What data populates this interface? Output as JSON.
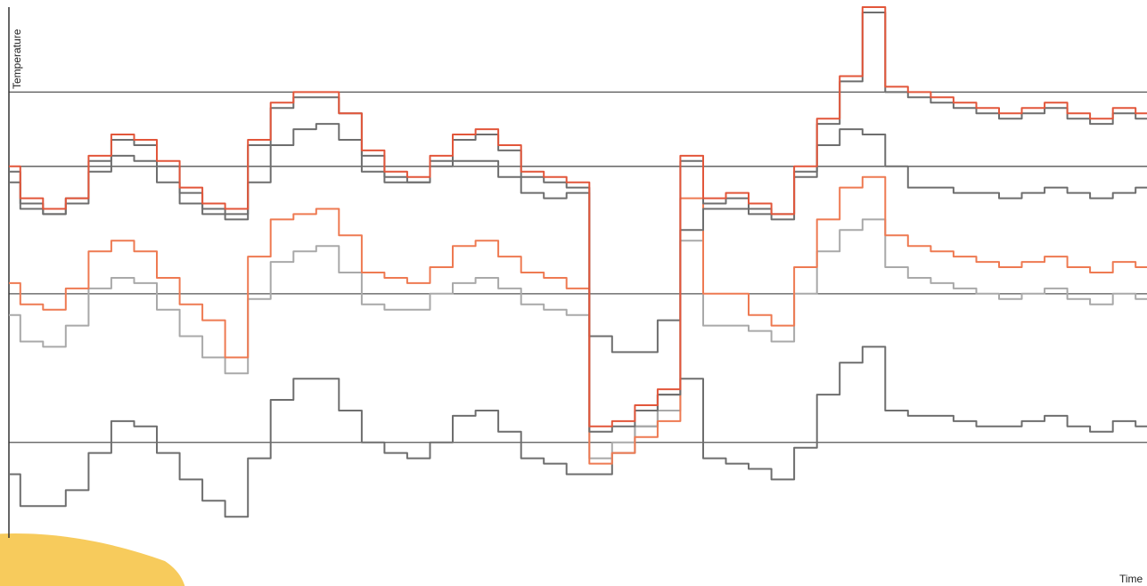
{
  "chart_data": {
    "type": "line",
    "ylabel": "Temperature",
    "xlabel": "Time",
    "grid": "horizontal",
    "legend": "none",
    "x": [
      0,
      2,
      4,
      6,
      8,
      10,
      12,
      14,
      16,
      18,
      20,
      22,
      24,
      26,
      28,
      30,
      32,
      34,
      36,
      38,
      40,
      42,
      44,
      46,
      48,
      50,
      52,
      54,
      56,
      58,
      60,
      62,
      64,
      66,
      68,
      70,
      72,
      74,
      76,
      78,
      80,
      82,
      84,
      86,
      88,
      90,
      92,
      94,
      96,
      98,
      100
    ],
    "ylim": [
      0,
      100
    ],
    "reference_lines": [
      18,
      46,
      70,
      84
    ],
    "colors": {
      "dark_gray": "#6e6e6e",
      "light_gray": "#a9a9a9",
      "orange": "#ee7a52",
      "red_orange": "#e2563a",
      "highlight": "#f6c54a"
    },
    "series": [
      {
        "color": "#e2563a",
        "values": [
          70,
          64,
          62,
          64,
          72,
          76,
          75,
          71,
          66,
          63,
          62,
          75,
          82,
          84,
          84,
          80,
          73,
          69,
          68,
          72,
          76,
          77,
          74,
          69,
          68,
          67,
          21,
          22,
          25,
          28,
          72,
          64,
          65,
          63,
          61,
          70,
          79,
          87,
          100,
          85,
          84,
          83,
          82,
          81,
          80,
          81,
          82,
          80,
          79,
          81,
          80
        ]
      },
      {
        "color": "#6e6e6e",
        "values": [
          69,
          63,
          61,
          63,
          71,
          75,
          74,
          70,
          65,
          62,
          61,
          74,
          81,
          83,
          83,
          80,
          72,
          68,
          67,
          71,
          75,
          76,
          73,
          68,
          67,
          66,
          20,
          21,
          24,
          27,
          71,
          63,
          64,
          62,
          60,
          69,
          78,
          86,
          99,
          84,
          83,
          82,
          81,
          80,
          79,
          80,
          81,
          79,
          78,
          80,
          79
        ]
      },
      {
        "color": "#6e6e6e",
        "values": [
          67,
          62,
          61,
          64,
          69,
          72,
          71,
          67,
          63,
          61,
          60,
          67,
          74,
          77,
          78,
          75,
          69,
          67,
          67,
          70,
          71,
          71,
          68,
          65,
          64,
          65,
          38,
          35,
          35,
          41,
          58,
          62,
          62,
          61,
          61,
          68,
          74,
          77,
          76,
          70,
          66,
          66,
          65,
          65,
          64,
          65,
          66,
          65,
          64,
          65,
          66
        ]
      },
      {
        "color": "#ee7a52",
        "values": [
          48,
          44,
          43,
          47,
          54,
          56,
          54,
          49,
          44,
          41,
          34,
          53,
          60,
          61,
          62,
          57,
          50,
          49,
          48,
          51,
          55,
          56,
          53,
          50,
          49,
          47,
          14,
          16,
          19,
          22,
          64,
          46,
          46,
          42,
          40,
          51,
          60,
          66,
          68,
          57,
          55,
          54,
          53,
          52,
          51,
          52,
          53,
          51,
          50,
          52,
          51
        ]
      },
      {
        "color": "#a9a9a9",
        "values": [
          42,
          37,
          36,
          40,
          47,
          49,
          48,
          43,
          38,
          34,
          31,
          45,
          52,
          54,
          55,
          50,
          44,
          43,
          43,
          46,
          48,
          49,
          47,
          44,
          43,
          42,
          15,
          18,
          21,
          24,
          56,
          40,
          40,
          39,
          37,
          46,
          54,
          58,
          60,
          51,
          49,
          48,
          47,
          46,
          45,
          46,
          47,
          45,
          44,
          46,
          45
        ]
      },
      {
        "color": "#6e6e6e",
        "values": [
          12,
          6,
          6,
          9,
          16,
          22,
          21,
          16,
          11,
          7,
          4,
          15,
          26,
          30,
          30,
          24,
          18,
          16,
          15,
          18,
          23,
          24,
          20,
          15,
          14,
          12,
          12,
          16,
          21,
          27,
          30,
          15,
          14,
          13,
          11,
          17,
          27,
          33,
          36,
          24,
          23,
          23,
          22,
          21,
          21,
          22,
          23,
          21,
          20,
          22,
          21
        ]
      }
    ]
  }
}
